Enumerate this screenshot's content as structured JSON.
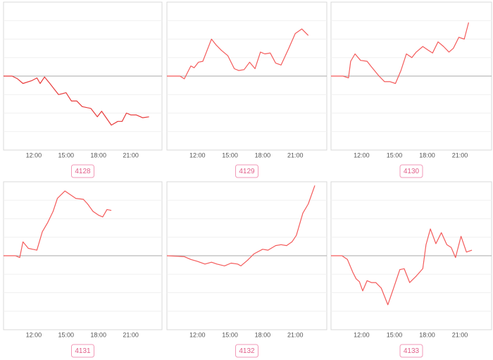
{
  "chart_data": [
    {
      "type": "line",
      "title": "4128",
      "color": "#e83a3a",
      "x": [
        9.2,
        10,
        10.5,
        11,
        11.8,
        12.3,
        12.6,
        13,
        13.5,
        14.3,
        15,
        15.5,
        16,
        16.5,
        17.3,
        17.9,
        18.3,
        19.2,
        19.8,
        20.2,
        20.6,
        21,
        21.5,
        22.1,
        22.7
      ],
      "values": [
        0,
        0,
        -0.15,
        -0.4,
        -0.25,
        -0.1,
        -0.4,
        -0.05,
        -0.4,
        -1,
        -0.9,
        -1.35,
        -1.35,
        -1.65,
        -1.75,
        -2.2,
        -1.9,
        -2.65,
        -2.45,
        -2.45,
        -2,
        -2.1,
        -2.1,
        -2.25,
        -2.2
      ],
      "xlim": [
        9.2,
        23.9
      ],
      "xticks": [
        {
          "value": 12,
          "label": "12:00"
        },
        {
          "value": 15,
          "label": "15:00"
        },
        {
          "value": 18,
          "label": "18:00"
        },
        {
          "value": 21,
          "label": "21:00"
        }
      ],
      "ylim": [
        -4,
        4
      ],
      "yticks": [
        -3,
        -2,
        -1,
        0,
        1,
        2,
        3
      ],
      "grid": true
    },
    {
      "type": "line",
      "title": "4129",
      "color": "#f45a5a",
      "x": [
        9.2,
        10.4,
        10.8,
        11.4,
        11.7,
        12.1,
        12.5,
        12.9,
        13.3,
        13.7,
        14.2,
        14.8,
        15.4,
        15.8,
        16.3,
        16.8,
        17.3,
        17.8,
        18.2,
        18.7,
        19.2,
        19.7,
        20.4,
        21,
        21.6,
        22.2
      ],
      "values": [
        0,
        0,
        -0.15,
        0.55,
        0.45,
        0.75,
        0.8,
        1.4,
        2,
        1.7,
        1.4,
        1.1,
        0.4,
        0.3,
        0.35,
        0.75,
        0.4,
        1.3,
        1.2,
        1.25,
        0.7,
        0.6,
        1.5,
        2.3,
        2.55,
        2.2
      ],
      "xlim": [
        9.2,
        23.9
      ],
      "xticks": [
        {
          "value": 12,
          "label": "12:00"
        },
        {
          "value": 15,
          "label": "15:00"
        },
        {
          "value": 18,
          "label": "18:00"
        },
        {
          "value": 21,
          "label": "21:00"
        }
      ],
      "ylim": [
        -4,
        4
      ],
      "yticks": [
        -3,
        -2,
        -1,
        0,
        1,
        2,
        3
      ],
      "grid": true
    },
    {
      "type": "line",
      "title": "4130",
      "color": "#f45a5a",
      "x": [
        9.2,
        10.3,
        10.8,
        11,
        11.4,
        11.9,
        12.5,
        12.9,
        13.6,
        14.1,
        14.6,
        15.1,
        15.6,
        16.1,
        16.6,
        17,
        17.6,
        18.1,
        18.5,
        19,
        19.5,
        20,
        20.4,
        20.9,
        21.4,
        21.8
      ],
      "values": [
        0,
        0,
        -0.1,
        0.8,
        1.2,
        0.85,
        0.8,
        0.5,
        0,
        -0.3,
        -0.3,
        -0.4,
        0.3,
        1.2,
        1,
        1.3,
        1.6,
        1.4,
        1.25,
        1.85,
        1.6,
        1.3,
        1.5,
        2.1,
        2,
        2.9
      ],
      "xlim": [
        9.2,
        23.9
      ],
      "xticks": [
        {
          "value": 12,
          "label": "12:00"
        },
        {
          "value": 15,
          "label": "15:00"
        },
        {
          "value": 18,
          "label": "18:00"
        },
        {
          "value": 21,
          "label": "21:00"
        }
      ],
      "ylim": [
        -4,
        4
      ],
      "yticks": [
        -3,
        -2,
        -1,
        0,
        1,
        2,
        3
      ],
      "grid": true
    },
    {
      "type": "line",
      "title": "4131",
      "color": "#f45a5a",
      "x": [
        9.2,
        10.3,
        10.7,
        11,
        11.5,
        11.9,
        12.3,
        12.8,
        13.3,
        13.8,
        14.2,
        14.9,
        15.4,
        15.9,
        16.6,
        17,
        17.5,
        18,
        18.4,
        18.8,
        19.2
      ],
      "values": [
        0,
        0,
        -0.1,
        0.75,
        0.4,
        0.35,
        0.3,
        1.3,
        1.8,
        2.4,
        3.1,
        3.5,
        3.3,
        3.1,
        3.05,
        2.8,
        2.4,
        2.2,
        2.1,
        2.5,
        2.45
      ],
      "xlim": [
        9.2,
        23.9
      ],
      "xticks": [
        {
          "value": 12,
          "label": "12:00"
        },
        {
          "value": 15,
          "label": "15:00"
        },
        {
          "value": 18,
          "label": "18:00"
        },
        {
          "value": 21,
          "label": "21:00"
        }
      ],
      "ylim": [
        -4,
        4
      ],
      "yticks": [
        -3,
        -2,
        -1,
        0,
        1,
        2,
        3
      ],
      "grid": true
    },
    {
      "type": "line",
      "title": "4132",
      "color": "#f45a5a",
      "x": [
        9.2,
        10.8,
        11.4,
        12,
        12.7,
        13.3,
        13.8,
        14.5,
        15.1,
        15.7,
        16,
        16.6,
        17.2,
        18,
        18.5,
        19.2,
        19.7,
        20.2,
        20.7,
        21.1,
        21.7,
        22.2,
        22.8
      ],
      "values": [
        0,
        -0.05,
        -0.2,
        -0.3,
        -0.45,
        -0.35,
        -0.45,
        -0.55,
        -0.4,
        -0.45,
        -0.55,
        -0.25,
        0.1,
        0.35,
        0.3,
        0.55,
        0.6,
        0.55,
        0.75,
        1.1,
        2.3,
        2.8,
        3.8
      ],
      "xlim": [
        9.2,
        23.9
      ],
      "xticks": [
        {
          "value": 12,
          "label": "12:00"
        },
        {
          "value": 15,
          "label": "15:00"
        },
        {
          "value": 18,
          "label": "18:00"
        },
        {
          "value": 21,
          "label": "21:00"
        }
      ],
      "ylim": [
        -4,
        4
      ],
      "yticks": [
        -3,
        -2,
        -1,
        0,
        1,
        2,
        3
      ],
      "grid": true
    },
    {
      "type": "line",
      "title": "4133",
      "color": "#f45a5a",
      "x": [
        9.2,
        10.2,
        10.7,
        11.2,
        11.5,
        11.8,
        12.1,
        12.5,
        12.9,
        13.3,
        13.8,
        14.4,
        14.9,
        15.5,
        15.9,
        16.4,
        17,
        17.6,
        17.9,
        18.3,
        18.8,
        19.3,
        19.8,
        20.2,
        20.6,
        21.1,
        21.6,
        22.1
      ],
      "values": [
        0,
        0,
        -0.2,
        -0.9,
        -1.25,
        -1.4,
        -1.9,
        -1.35,
        -1.45,
        -1.45,
        -1.75,
        -2.65,
        -1.8,
        -0.75,
        -0.7,
        -1.45,
        -1.1,
        -0.7,
        0.6,
        1.45,
        0.65,
        1.25,
        0.6,
        0.45,
        -0.1,
        1.05,
        0.2,
        0.3
      ],
      "xlim": [
        9.2,
        23.9
      ],
      "xticks": [
        {
          "value": 12,
          "label": "12:00"
        },
        {
          "value": 15,
          "label": "15:00"
        },
        {
          "value": 18,
          "label": "18:00"
        },
        {
          "value": 21,
          "label": "21:00"
        }
      ],
      "ylim": [
        -4,
        4
      ],
      "yticks": [
        -3,
        -2,
        -1,
        0,
        1,
        2,
        3
      ],
      "grid": true
    }
  ]
}
